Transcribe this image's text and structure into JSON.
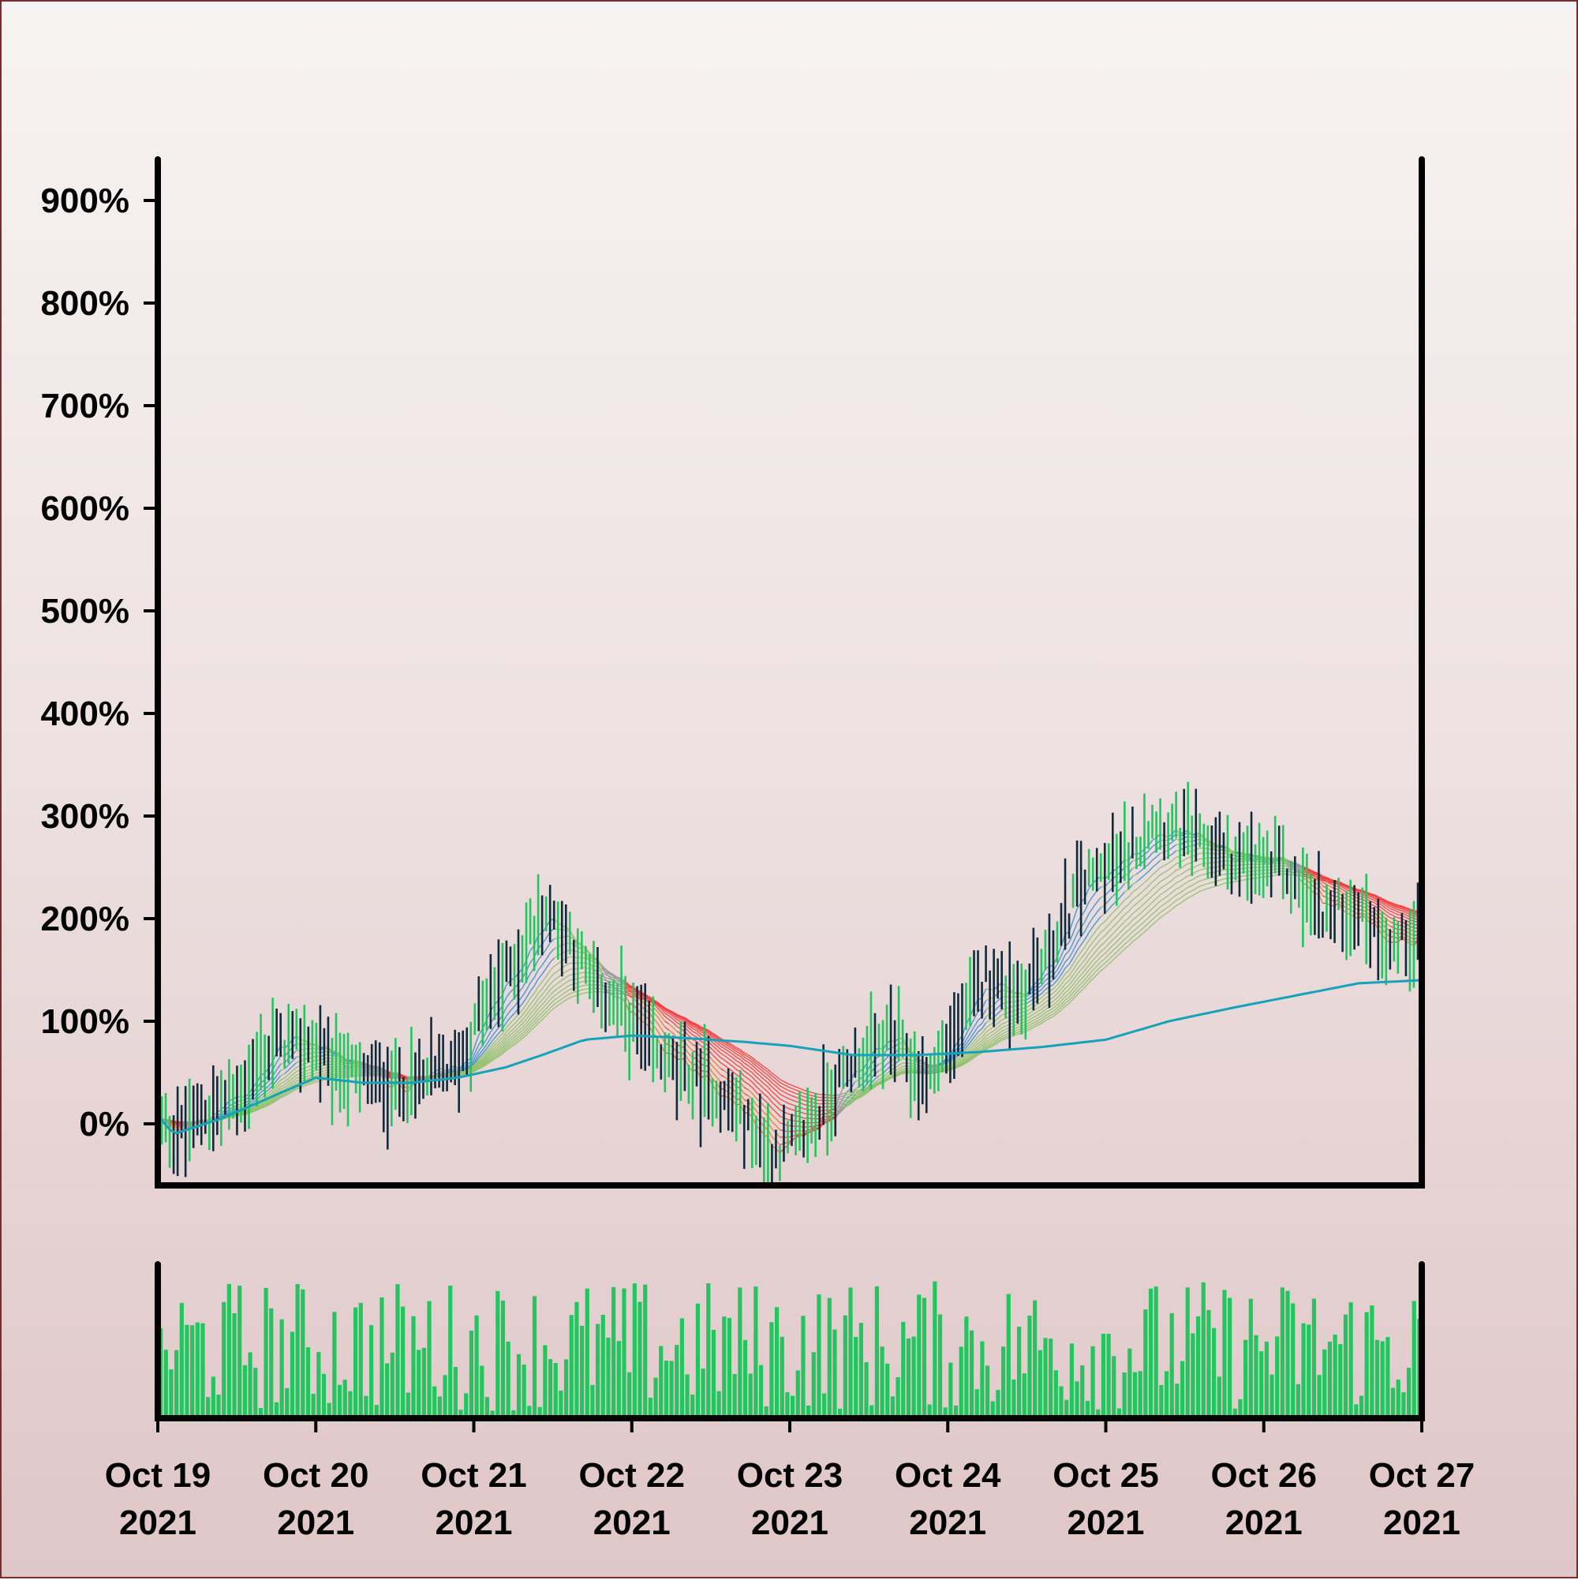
{
  "chart_data": {
    "type": "bar",
    "title": "",
    "xlabel": "",
    "ylabel": "",
    "x_ticks": [
      {
        "line1": "Oct 19",
        "line2": "2021",
        "day": 0
      },
      {
        "line1": "Oct 20",
        "line2": "2021",
        "day": 1
      },
      {
        "line1": "Oct 21",
        "line2": "2021",
        "day": 2
      },
      {
        "line1": "Oct 22",
        "line2": "2021",
        "day": 3
      },
      {
        "line1": "Oct 23",
        "line2": "2021",
        "day": 4
      },
      {
        "line1": "Oct 24",
        "line2": "2021",
        "day": 5
      },
      {
        "line1": "Oct 25",
        "line2": "2021",
        "day": 6
      },
      {
        "line1": "Oct 26",
        "line2": "2021",
        "day": 7
      },
      {
        "line1": "Oct 27",
        "line2": "2021",
        "day": 8
      }
    ],
    "y_ticks": [
      "0%",
      "100%",
      "200%",
      "300%",
      "400%",
      "500%",
      "600%",
      "700%",
      "800%",
      "900%"
    ],
    "y_tick_values": [
      0,
      100,
      200,
      300,
      400,
      500,
      600,
      700,
      800,
      900
    ],
    "ylim": [
      -60,
      940
    ],
    "xlim": [
      0,
      8
    ],
    "grid": false,
    "legend": "none",
    "price_path_pct": [
      [
        0.0,
        0
      ],
      [
        0.1,
        -12
      ],
      [
        0.3,
        10
      ],
      [
        0.55,
        35
      ],
      [
        0.75,
        80
      ],
      [
        0.95,
        80
      ],
      [
        1.1,
        60
      ],
      [
        1.3,
        45
      ],
      [
        1.55,
        35
      ],
      [
        1.75,
        48
      ],
      [
        1.9,
        55
      ],
      [
        2.05,
        110
      ],
      [
        2.25,
        155
      ],
      [
        2.45,
        210
      ],
      [
        2.6,
        185
      ],
      [
        2.75,
        130
      ],
      [
        2.95,
        110
      ],
      [
        3.15,
        65
      ],
      [
        3.4,
        45
      ],
      [
        3.65,
        15
      ],
      [
        3.9,
        -30
      ],
      [
        4.05,
        -15
      ],
      [
        4.2,
        15
      ],
      [
        4.4,
        60
      ],
      [
        4.65,
        85
      ],
      [
        4.85,
        40
      ],
      [
        5.05,
        90
      ],
      [
        5.25,
        145
      ],
      [
        5.45,
        125
      ],
      [
        5.65,
        165
      ],
      [
        5.85,
        235
      ],
      [
        6.1,
        255
      ],
      [
        6.3,
        295
      ],
      [
        6.6,
        270
      ],
      [
        6.9,
        250
      ],
      [
        7.1,
        250
      ],
      [
        7.35,
        210
      ],
      [
        7.6,
        205
      ],
      [
        7.8,
        175
      ],
      [
        8.0,
        185
      ]
    ],
    "moving_average_pct": [
      [
        0.0,
        8
      ],
      [
        0.1,
        -10
      ],
      [
        0.4,
        5
      ],
      [
        0.7,
        25
      ],
      [
        1.0,
        45
      ],
      [
        1.3,
        40
      ],
      [
        1.6,
        40
      ],
      [
        1.9,
        45
      ],
      [
        2.2,
        55
      ],
      [
        2.45,
        68
      ],
      [
        2.7,
        82
      ],
      [
        3.0,
        86
      ],
      [
        3.3,
        84
      ],
      [
        3.7,
        80
      ],
      [
        4.0,
        76
      ],
      [
        4.4,
        67
      ],
      [
        4.8,
        67
      ],
      [
        5.2,
        70
      ],
      [
        5.6,
        75
      ],
      [
        6.0,
        82
      ],
      [
        6.4,
        100
      ],
      [
        6.8,
        113
      ],
      [
        7.2,
        125
      ],
      [
        7.6,
        137
      ],
      [
        8.0,
        140
      ]
    ],
    "colors": {
      "up_bar": "#22c55e",
      "down_bar": "#0f2a3a",
      "volume": "#22c55e",
      "moving_average": "#16a3b8",
      "ribbon_bull": "#8fc26a",
      "ribbon_bear": "#f43f3f",
      "ribbon_strong_bull": "#3b8fd1",
      "ribbon_strong_bear": "#f07a2a",
      "ribbon_neutral": "#9a9a9a",
      "axis": "#000000"
    },
    "volume_scale_max": 100,
    "volume_level_pct": 55
  }
}
